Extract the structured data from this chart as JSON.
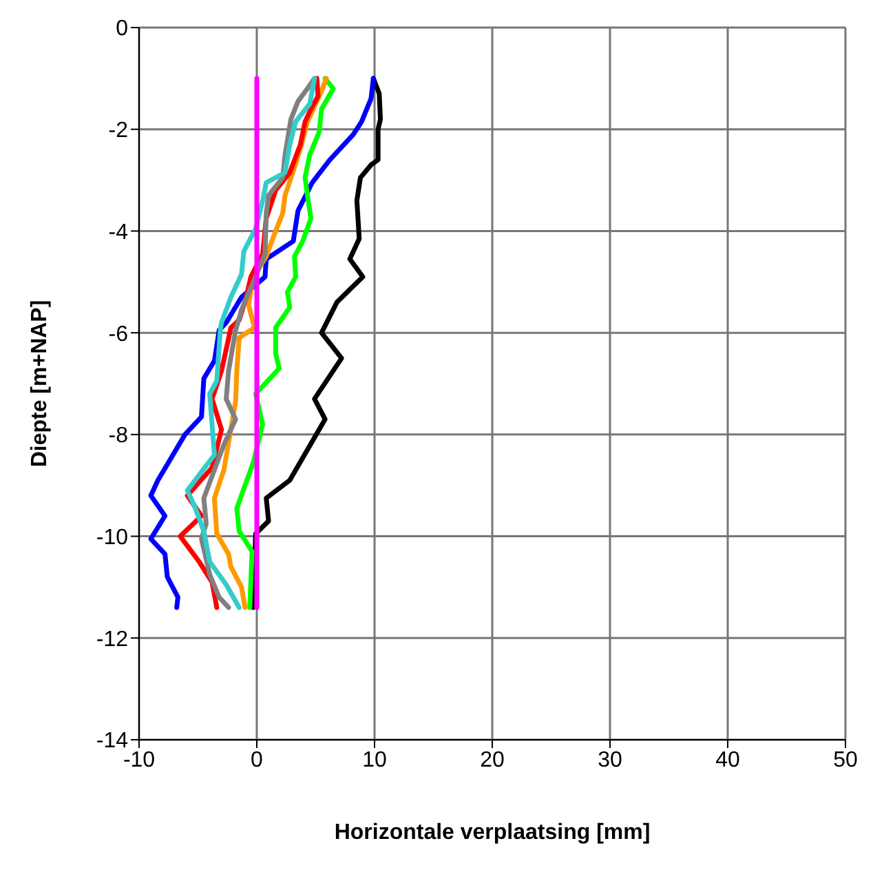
{
  "chart_data": {
    "type": "line",
    "xlabel": "Horizontale verplaatsing [mm]",
    "ylabel": "Diepte [m+NAP]",
    "xlim": [
      -10,
      50
    ],
    "xticks": [
      -10,
      0,
      10,
      20,
      30,
      40,
      50
    ],
    "ylim": [
      -14,
      0
    ],
    "yticks": [
      -14,
      -12,
      -10,
      -8,
      -6,
      -4,
      -2,
      0
    ],
    "grid": true,
    "legend": false,
    "marker": "none",
    "line_style": "solid",
    "series": [
      {
        "color": "#000000",
        "x": [
          9.9,
          10.4,
          10.5,
          10.3,
          10.3,
          9.7,
          8.8,
          8.5,
          8.7,
          7.9,
          9,
          6.8,
          5.5,
          7.2,
          4.9,
          5.8,
          2.8,
          0.8,
          1.0,
          -0.1,
          -0.3
        ],
        "values": [
          -1,
          -1.3,
          -1.8,
          -2,
          -2.6,
          -2.7,
          -2.95,
          -3.4,
          -4.15,
          -4.55,
          -4.9,
          -5.4,
          -6.0,
          -6.5,
          -7.3,
          -7.7,
          -8.9,
          -9.25,
          -9.7,
          -9.95,
          -11.4
        ]
      },
      {
        "color": "#0000ff",
        "x": [
          9.9,
          9.7,
          8.9,
          8.2,
          6.2,
          4.7,
          3.5,
          3.1,
          0.8,
          0.7,
          -1.3,
          -2.6,
          -3.2,
          -3.6,
          -4.5,
          -4.7,
          -6.1,
          -8.4,
          -9.0,
          -7.8,
          -9.0,
          -7.8,
          -7.6,
          -6.7,
          -6.8
        ],
        "values": [
          -1,
          -1.4,
          -1.85,
          -2.1,
          -2.6,
          -3.05,
          -3.6,
          -4.2,
          -4.55,
          -4.9,
          -5.3,
          -5.8,
          -5.95,
          -6.55,
          -6.9,
          -7.65,
          -8,
          -8.9,
          -9.2,
          -9.6,
          -10.05,
          -10.35,
          -10.8,
          -11.2,
          -11.4
        ]
      },
      {
        "color": "#00ff00",
        "x": [
          5.8,
          6.5,
          5.5,
          5.3,
          4.5,
          4.1,
          4.3,
          4.6,
          3.9,
          3.2,
          3.3,
          2.6,
          2.8,
          1.6,
          1.6,
          1.9,
          -0.1,
          0.5,
          -0.3,
          -1.7,
          -1.5,
          -0.4,
          -0.6
        ],
        "values": [
          -1,
          -1.2,
          -1.6,
          -2.05,
          -2.5,
          -2.95,
          -3.3,
          -3.75,
          -4.2,
          -4.5,
          -4.9,
          -5.2,
          -5.5,
          -5.9,
          -6.4,
          -6.7,
          -7.2,
          -7.8,
          -8.55,
          -9.45,
          -9.9,
          -10.3,
          -11.4
        ]
      },
      {
        "color": "#ff9900",
        "x": [
          5.9,
          5.5,
          4.3,
          3.8,
          3.2,
          2.4,
          2.2,
          1.6,
          0.8,
          -0.3,
          -0.7,
          -0.2,
          -1.5,
          -1.7,
          -1.8,
          -2.8,
          -3.6,
          -3.4,
          -2.4,
          -2.2,
          -1.3,
          -1.0
        ],
        "values": [
          -1,
          -1.25,
          -1.85,
          -2.3,
          -2.75,
          -3.3,
          -3.65,
          -4.0,
          -4.5,
          -4.9,
          -5.45,
          -5.9,
          -6.1,
          -6.75,
          -7.35,
          -8.7,
          -9.25,
          -9.95,
          -10.35,
          -10.6,
          -11.0,
          -11.4
        ]
      },
      {
        "color": "#ff0000",
        "x": [
          5.1,
          5.2,
          4.6,
          4.1,
          3.7,
          2.8,
          1.6,
          0.8,
          0.5,
          -0.5,
          -0.9,
          -1.5,
          -2.2,
          -3.0,
          -3.8,
          -3.0,
          -3.8,
          -5.9,
          -4.7,
          -6.5,
          -4.9,
          -3.8,
          -3.4
        ],
        "values": [
          -1,
          -1.35,
          -1.6,
          -1.85,
          -2.3,
          -2.85,
          -3.2,
          -3.75,
          -4.45,
          -4.9,
          -5.3,
          -5.75,
          -5.9,
          -6.75,
          -7.3,
          -7.9,
          -8.65,
          -9.2,
          -9.6,
          -10.0,
          -10.5,
          -10.9,
          -11.4
        ]
      },
      {
        "color": "#808080",
        "x": [
          4.9,
          4.3,
          3.5,
          2.9,
          2.4,
          2.2,
          1.0,
          0.8,
          0.7,
          -0.3,
          -1.3,
          -1.8,
          -2.4,
          -2.6,
          -1.8,
          -2.8,
          -4.5,
          -4.3,
          -4.7,
          -4.0,
          -3.2,
          -2.4
        ],
        "values": [
          -1,
          -1.2,
          -1.45,
          -1.8,
          -2.5,
          -2.95,
          -3.3,
          -3.65,
          -4.45,
          -5.0,
          -5.55,
          -5.95,
          -6.75,
          -7.3,
          -7.7,
          -8.2,
          -9.25,
          -9.75,
          -10.05,
          -10.75,
          -11.2,
          -11.4
        ]
      },
      {
        "color": "#33cccc",
        "x": [
          4.9,
          4.5,
          3.3,
          2.8,
          2.4,
          0.8,
          0.5,
          -0.1,
          -1.1,
          -1.3,
          -2.2,
          -3.0,
          -3.1,
          -3.4,
          -4.0,
          -3.6,
          -5.9,
          -5.3,
          -4.5,
          -4.0,
          -2.6,
          -1.5
        ],
        "values": [
          -1,
          -1.5,
          -1.85,
          -2.3,
          -2.85,
          -3.05,
          -3.4,
          -3.95,
          -4.4,
          -4.85,
          -5.3,
          -5.8,
          -5.95,
          -6.95,
          -7.2,
          -8.4,
          -9.1,
          -9.4,
          -9.9,
          -10.5,
          -10.95,
          -11.4
        ]
      },
      {
        "color": "#ff00ff",
        "x": [
          0,
          0
        ],
        "values": [
          -1,
          -11.4
        ]
      }
    ]
  }
}
